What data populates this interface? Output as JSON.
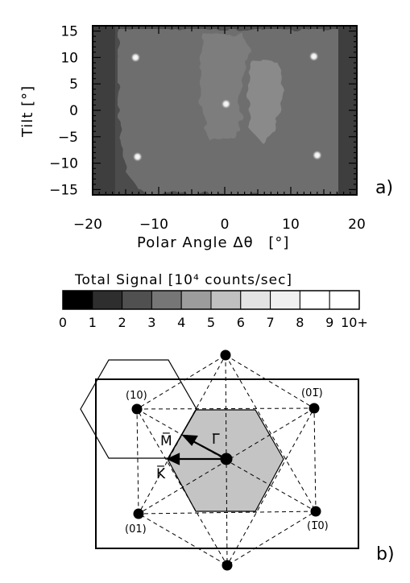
{
  "panel_a": {
    "x_axis": {
      "label": "Polar Angle Δθ",
      "unit": "[°]",
      "min": -20,
      "max": 20,
      "ticks": [
        {
          "value": -20,
          "label": "−20"
        },
        {
          "value": -10,
          "label": "−10"
        },
        {
          "value": 0,
          "label": "0"
        },
        {
          "value": 10,
          "label": "10"
        },
        {
          "value": 20,
          "label": "20"
        }
      ]
    },
    "y_axis": {
      "label": "Tilt [°]",
      "min": -16,
      "max": 16,
      "ticks": [
        {
          "value": 15,
          "label": "15"
        },
        {
          "value": 10,
          "label": "10"
        },
        {
          "value": 5,
          "label": "5"
        },
        {
          "value": 0,
          "label": "0"
        },
        {
          "value": -5,
          "label": "−5"
        },
        {
          "value": -10,
          "label": "−10"
        },
        {
          "value": -15,
          "label": "−15"
        }
      ]
    },
    "panel_label": "a)",
    "spots": [
      {
        "x": -13.5,
        "y": 10
      },
      {
        "x": 13.5,
        "y": 10.2
      },
      {
        "x": 0.2,
        "y": 1.2
      },
      {
        "x": -13.2,
        "y": -8.8
      },
      {
        "x": 14,
        "y": -8.5
      }
    ]
  },
  "colorbar": {
    "title": "Total Signal [10⁴ counts/sec]",
    "colors": [
      "#000000",
      "#2e2e2e",
      "#505050",
      "#767676",
      "#9c9c9c",
      "#c0c0c0",
      "#e3e3e3",
      "#f0f0f0",
      "#ffffff",
      "#ffffff"
    ],
    "tick_labels": [
      "0",
      "1",
      "2",
      "3",
      "4",
      "5",
      "6",
      "7",
      "8",
      "9",
      "10+"
    ]
  },
  "panel_b": {
    "panel_label": "b)",
    "reciprocal_points": [
      {
        "label": "(10)",
        "q": [
          -1,
          1
        ]
      },
      {
        "label": "(01̅)",
        "q": [
          1,
          1
        ]
      },
      {
        "label": "(01)",
        "q": [
          -1,
          -1
        ]
      },
      {
        "label": "(1̅0)",
        "q": [
          1,
          -1
        ]
      }
    ],
    "symmetry_labels": {
      "gamma": "Γ̅",
      "m": "M̅",
      "k": "K̅"
    }
  }
}
